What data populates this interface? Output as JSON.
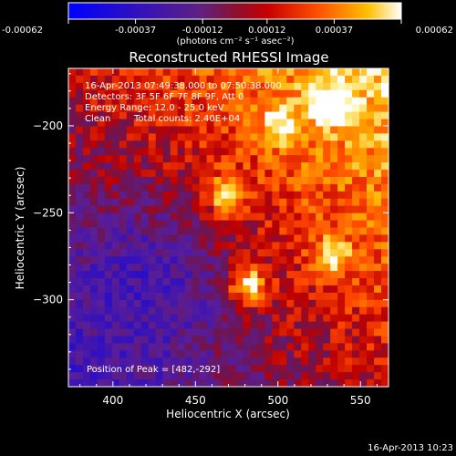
{
  "colorbar": {
    "tick_labels": [
      "-0.00062",
      "-0.00037",
      "-0.00012",
      "0.00012",
      "0.00037",
      "0.00062"
    ],
    "range": [
      -0.00062,
      0.00062
    ],
    "units_label": "(photons cm⁻² s⁻¹ asec⁻²)"
  },
  "title": "Reconstructed RHESSI Image",
  "info": {
    "time_range": "16-Apr-2013 07:49:38.000 to 07:50:38.000",
    "detectors": "Detectors: 3F 5F 6F 7F 8F 9F, Att 0",
    "energy": "Energy Range: 12.0 - 25.0 keV",
    "algorithm": "Clean",
    "counts": "Total counts: 2.40E+04"
  },
  "peak_label": "Position of Peak = [482,-292]",
  "footer_timestamp": "16-Apr-2013 10:23",
  "chart_data": {
    "type": "heatmap",
    "title": "Reconstructed RHESSI Image",
    "xlabel": "Heliocentric X (arcsec)",
    "ylabel": "Heliocentric Y (arcsec)",
    "xlim": [
      373,
      567
    ],
    "ylim": [
      -350,
      -167
    ],
    "x_ticks": [
      400,
      450,
      500,
      550
    ],
    "y_ticks": [
      -200,
      -250,
      -300
    ],
    "x_tick_labels": [
      "400",
      "450",
      "500",
      "550"
    ],
    "y_tick_labels": [
      "−200",
      "−250",
      "−300"
    ],
    "colormap": "blue-purple-red-orange-yellow-white",
    "peak": [
      482,
      -292
    ],
    "bright_sources": [
      {
        "x": 482,
        "y": -292,
        "level": 1.0
      },
      {
        "x": 531,
        "y": -188,
        "level": 0.9
      },
      {
        "x": 468,
        "y": -240,
        "level": 0.75
      },
      {
        "x": 533,
        "y": -275,
        "level": 0.7
      },
      {
        "x": 500,
        "y": -200,
        "level": 0.6
      }
    ]
  }
}
